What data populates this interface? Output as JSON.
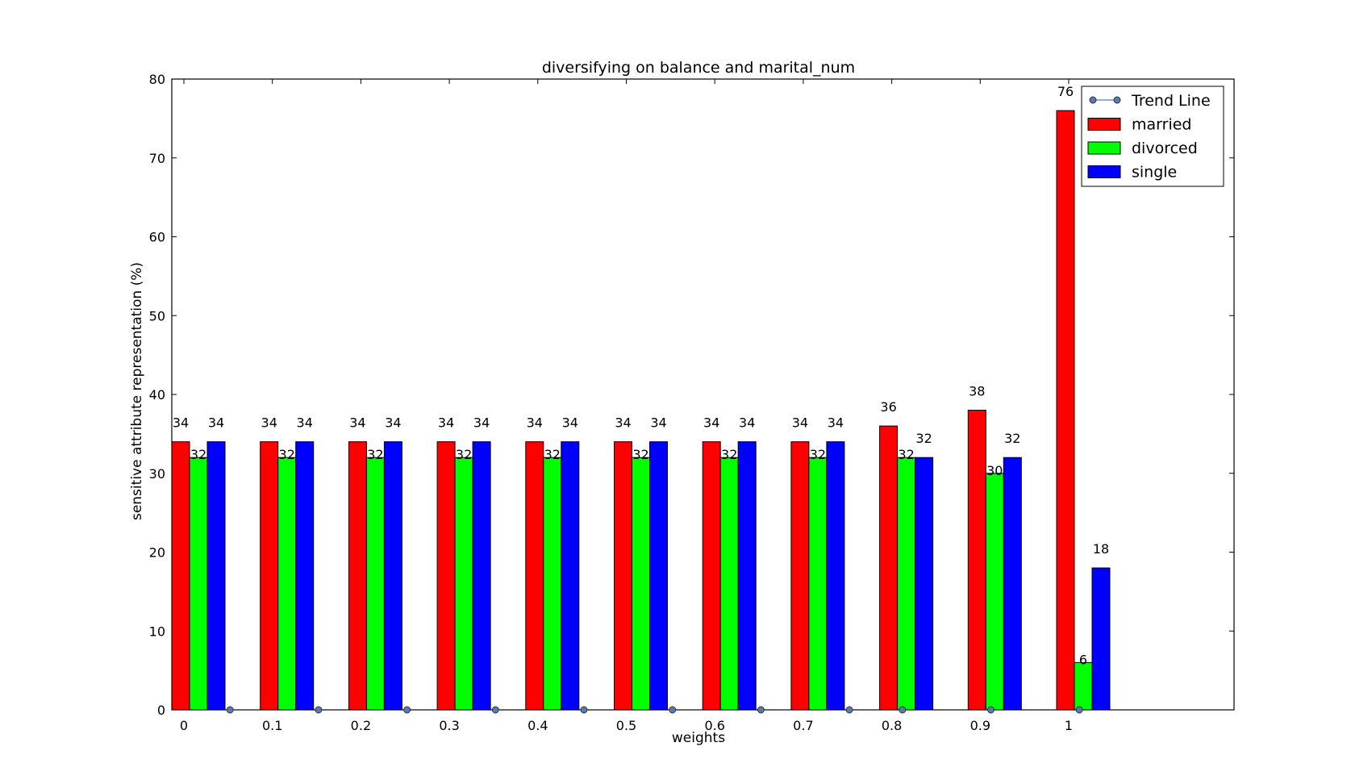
{
  "chart_data": {
    "type": "bar",
    "title": "diversifying on balance and marital_num",
    "xlabel": "weights",
    "ylabel": "sensitive attribute representation (%)",
    "ylim": [
      0,
      80
    ],
    "yticks": [
      0,
      10,
      20,
      30,
      40,
      50,
      60,
      70,
      80
    ],
    "categories": [
      "0",
      "0.1",
      "0.2",
      "0.3",
      "0.4",
      "0.5",
      "0.6",
      "0.7",
      "0.8",
      "0.9",
      "1"
    ],
    "series": [
      {
        "name": "married",
        "color": "#ff0000",
        "values": [
          34,
          34,
          34,
          34,
          34,
          34,
          34,
          34,
          36,
          38,
          76
        ]
      },
      {
        "name": "divorced",
        "color": "#00ff00",
        "values": [
          32,
          32,
          32,
          32,
          32,
          32,
          32,
          32,
          32,
          30,
          6
        ]
      },
      {
        "name": "single",
        "color": "#0000ff",
        "values": [
          34,
          34,
          34,
          34,
          34,
          34,
          34,
          34,
          32,
          32,
          18
        ]
      }
    ],
    "trend_line": {
      "name": "Trend Line",
      "color": "#5878b8",
      "values": [
        0,
        0,
        0,
        0,
        0,
        0,
        0,
        0,
        0,
        0,
        0
      ]
    },
    "legend": {
      "placement": "top-right",
      "entries": [
        "Trend Line",
        "married",
        "divorced",
        "single"
      ]
    },
    "grid": false
  }
}
